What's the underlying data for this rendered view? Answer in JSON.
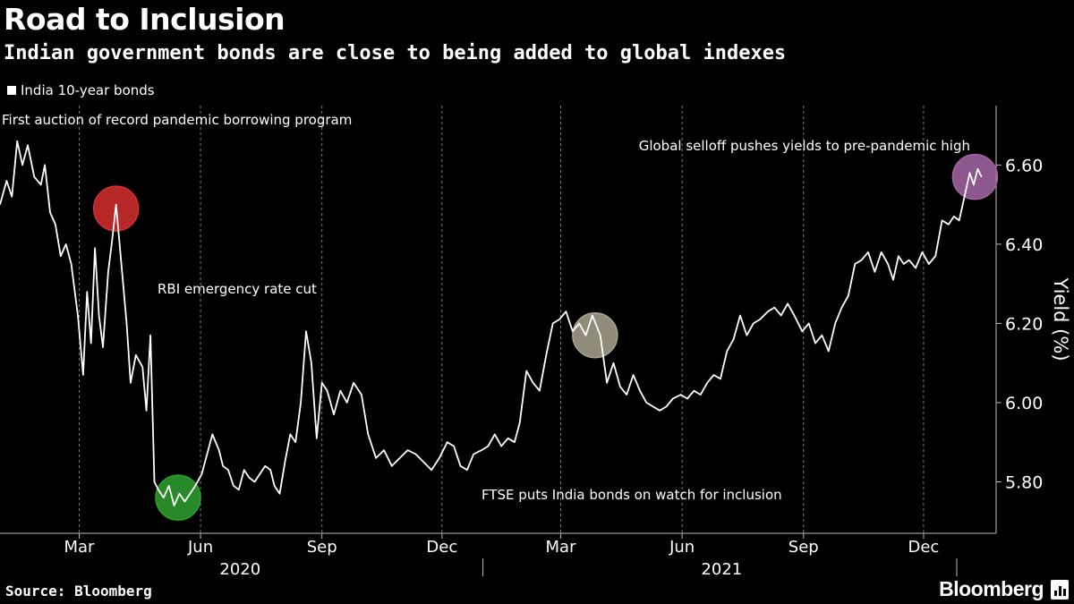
{
  "chart_data": {
    "type": "line",
    "title": "Road to Inclusion",
    "subtitle": "Indian government bonds are close to being added to global indexes",
    "ylabel": "Yield (%)",
    "ylim": [
      5.67,
      6.75
    ],
    "y_ticks": [
      5.8,
      6.0,
      6.2,
      6.4,
      6.6
    ],
    "y_tick_labels": [
      "5.80",
      "6.00",
      "6.20",
      "6.40",
      "6.60"
    ],
    "x_range": [
      "2020-01-01",
      "2022-01-25"
    ],
    "x_ticks": [
      {
        "date": "2020-03-01",
        "label": "Mar"
      },
      {
        "date": "2020-06-01",
        "label": "Jun"
      },
      {
        "date": "2020-09-01",
        "label": "Sep"
      },
      {
        "date": "2020-12-01",
        "label": "Dec"
      },
      {
        "date": "2021-03-01",
        "label": "Mar"
      },
      {
        "date": "2021-06-01",
        "label": "Jun"
      },
      {
        "date": "2021-09-01",
        "label": "Sep"
      },
      {
        "date": "2021-12-01",
        "label": "Dec"
      }
    ],
    "year_labels": [
      {
        "date": "2020-07-01",
        "label": "2020"
      },
      {
        "date": "2021-07-01",
        "label": "2021"
      }
    ],
    "year_divider": "2021-01-01",
    "grid": true,
    "legend": "top-left",
    "series": [
      {
        "name": "India 10-year bonds",
        "color": "#ffffff",
        "points": [
          [
            "2020-01-01",
            6.5
          ],
          [
            "2020-01-06",
            6.56
          ],
          [
            "2020-01-10",
            6.52
          ],
          [
            "2020-01-14",
            6.66
          ],
          [
            "2020-01-18",
            6.6
          ],
          [
            "2020-01-22",
            6.65
          ],
          [
            "2020-01-27",
            6.57
          ],
          [
            "2020-02-01",
            6.55
          ],
          [
            "2020-02-04",
            6.6
          ],
          [
            "2020-02-08",
            6.48
          ],
          [
            "2020-02-12",
            6.45
          ],
          [
            "2020-02-16",
            6.37
          ],
          [
            "2020-02-20",
            6.4
          ],
          [
            "2020-02-24",
            6.35
          ],
          [
            "2020-02-29",
            6.22
          ],
          [
            "2020-03-04",
            6.07
          ],
          [
            "2020-03-07",
            6.28
          ],
          [
            "2020-03-10",
            6.15
          ],
          [
            "2020-03-13",
            6.39
          ],
          [
            "2020-03-16",
            6.22
          ],
          [
            "2020-03-19",
            6.14
          ],
          [
            "2020-03-23",
            6.33
          ],
          [
            "2020-03-26",
            6.41
          ],
          [
            "2020-03-29",
            6.5
          ],
          [
            "2020-04-02",
            6.35
          ],
          [
            "2020-04-06",
            6.2
          ],
          [
            "2020-04-09",
            6.05
          ],
          [
            "2020-04-13",
            6.12
          ],
          [
            "2020-04-18",
            6.09
          ],
          [
            "2020-04-21",
            5.98
          ],
          [
            "2020-04-24",
            6.17
          ],
          [
            "2020-04-27",
            5.8
          ],
          [
            "2020-04-30",
            5.78
          ],
          [
            "2020-05-04",
            5.76
          ],
          [
            "2020-05-08",
            5.79
          ],
          [
            "2020-05-12",
            5.74
          ],
          [
            "2020-05-16",
            5.77
          ],
          [
            "2020-05-20",
            5.75
          ],
          [
            "2020-05-24",
            5.77
          ],
          [
            "2020-05-28",
            5.79
          ],
          [
            "2020-06-02",
            5.82
          ],
          [
            "2020-06-06",
            5.87
          ],
          [
            "2020-06-10",
            5.92
          ],
          [
            "2020-06-15",
            5.88
          ],
          [
            "2020-06-18",
            5.84
          ],
          [
            "2020-06-22",
            5.83
          ],
          [
            "2020-06-26",
            5.79
          ],
          [
            "2020-06-30",
            5.78
          ],
          [
            "2020-07-04",
            5.83
          ],
          [
            "2020-07-08",
            5.81
          ],
          [
            "2020-07-12",
            5.8
          ],
          [
            "2020-07-16",
            5.82
          ],
          [
            "2020-07-20",
            5.84
          ],
          [
            "2020-07-24",
            5.83
          ],
          [
            "2020-07-27",
            5.79
          ],
          [
            "2020-07-31",
            5.77
          ],
          [
            "2020-08-04",
            5.85
          ],
          [
            "2020-08-08",
            5.92
          ],
          [
            "2020-08-12",
            5.9
          ],
          [
            "2020-08-16",
            6.0
          ],
          [
            "2020-08-20",
            6.18
          ],
          [
            "2020-08-24",
            6.1
          ],
          [
            "2020-08-28",
            5.91
          ],
          [
            "2020-09-01",
            6.05
          ],
          [
            "2020-09-05",
            6.03
          ],
          [
            "2020-09-10",
            5.97
          ],
          [
            "2020-09-15",
            6.03
          ],
          [
            "2020-09-20",
            6.0
          ],
          [
            "2020-09-25",
            6.05
          ],
          [
            "2020-10-01",
            6.02
          ],
          [
            "2020-10-06",
            5.92
          ],
          [
            "2020-10-12",
            5.86
          ],
          [
            "2020-10-18",
            5.88
          ],
          [
            "2020-10-24",
            5.84
          ],
          [
            "2020-10-30",
            5.86
          ],
          [
            "2020-11-05",
            5.88
          ],
          [
            "2020-11-11",
            5.87
          ],
          [
            "2020-11-17",
            5.85
          ],
          [
            "2020-11-23",
            5.83
          ],
          [
            "2020-11-29",
            5.86
          ],
          [
            "2020-12-05",
            5.9
          ],
          [
            "2020-12-10",
            5.89
          ],
          [
            "2020-12-15",
            5.84
          ],
          [
            "2020-12-20",
            5.83
          ],
          [
            "2020-12-25",
            5.87
          ],
          [
            "2020-12-31",
            5.88
          ],
          [
            "2021-01-05",
            5.89
          ],
          [
            "2021-01-10",
            5.92
          ],
          [
            "2021-01-15",
            5.89
          ],
          [
            "2021-01-20",
            5.91
          ],
          [
            "2021-01-25",
            5.9
          ],
          [
            "2021-01-29",
            5.95
          ],
          [
            "2021-02-03",
            6.08
          ],
          [
            "2021-02-08",
            6.05
          ],
          [
            "2021-02-13",
            6.03
          ],
          [
            "2021-02-18",
            6.12
          ],
          [
            "2021-02-23",
            6.2
          ],
          [
            "2021-02-28",
            6.21
          ],
          [
            "2021-03-05",
            6.23
          ],
          [
            "2021-03-10",
            6.18
          ],
          [
            "2021-03-15",
            6.2
          ],
          [
            "2021-03-20",
            6.17
          ],
          [
            "2021-03-25",
            6.22
          ],
          [
            "2021-03-31",
            6.17
          ],
          [
            "2021-04-05",
            6.05
          ],
          [
            "2021-04-10",
            6.1
          ],
          [
            "2021-04-15",
            6.04
          ],
          [
            "2021-04-20",
            6.02
          ],
          [
            "2021-04-25",
            6.07
          ],
          [
            "2021-04-30",
            6.03
          ],
          [
            "2021-05-05",
            6.0
          ],
          [
            "2021-05-10",
            5.99
          ],
          [
            "2021-05-15",
            5.98
          ],
          [
            "2021-05-20",
            5.99
          ],
          [
            "2021-05-25",
            6.01
          ],
          [
            "2021-05-31",
            6.02
          ],
          [
            "2021-06-05",
            6.01
          ],
          [
            "2021-06-10",
            6.03
          ],
          [
            "2021-06-15",
            6.02
          ],
          [
            "2021-06-20",
            6.05
          ],
          [
            "2021-06-25",
            6.07
          ],
          [
            "2021-06-30",
            6.06
          ],
          [
            "2021-07-05",
            6.13
          ],
          [
            "2021-07-10",
            6.16
          ],
          [
            "2021-07-15",
            6.22
          ],
          [
            "2021-07-20",
            6.17
          ],
          [
            "2021-07-25",
            6.2
          ],
          [
            "2021-07-30",
            6.21
          ],
          [
            "2021-08-05",
            6.23
          ],
          [
            "2021-08-10",
            6.24
          ],
          [
            "2021-08-15",
            6.22
          ],
          [
            "2021-08-20",
            6.25
          ],
          [
            "2021-08-25",
            6.22
          ],
          [
            "2021-08-31",
            6.18
          ],
          [
            "2021-09-05",
            6.2
          ],
          [
            "2021-09-10",
            6.15
          ],
          [
            "2021-09-15",
            6.17
          ],
          [
            "2021-09-20",
            6.13
          ],
          [
            "2021-09-25",
            6.2
          ],
          [
            "2021-09-30",
            6.24
          ],
          [
            "2021-10-05",
            6.27
          ],
          [
            "2021-10-10",
            6.35
          ],
          [
            "2021-10-15",
            6.36
          ],
          [
            "2021-10-20",
            6.38
          ],
          [
            "2021-10-25",
            6.33
          ],
          [
            "2021-10-30",
            6.38
          ],
          [
            "2021-11-04",
            6.35
          ],
          [
            "2021-11-08",
            6.31
          ],
          [
            "2021-11-12",
            6.37
          ],
          [
            "2021-11-16",
            6.35
          ],
          [
            "2021-11-20",
            6.36
          ],
          [
            "2021-11-25",
            6.34
          ],
          [
            "2021-11-30",
            6.38
          ],
          [
            "2021-12-05",
            6.35
          ],
          [
            "2021-12-10",
            6.37
          ],
          [
            "2021-12-15",
            6.46
          ],
          [
            "2021-12-20",
            6.45
          ],
          [
            "2021-12-24",
            6.47
          ],
          [
            "2021-12-28",
            6.46
          ],
          [
            "2022-01-01",
            6.52
          ],
          [
            "2022-01-05",
            6.58
          ],
          [
            "2022-01-08",
            6.55
          ],
          [
            "2022-01-11",
            6.59
          ],
          [
            "2022-01-14",
            6.57
          ]
        ]
      }
    ],
    "annotations": [
      {
        "text": "First auction of record pandemic borrowing program",
        "date": "2020-01-15",
        "value": 6.66
      },
      {
        "text": "RBI emergency rate cut",
        "date": "2020-03-29",
        "value": 6.49,
        "marker_color": "#d62f2f"
      },
      {
        "text": "FTSE puts India bonds on watch for inclusion",
        "date": "2020-05-15",
        "value": 5.76,
        "marker_color": "#2ea12e"
      },
      {
        "text": "",
        "date": "2021-03-27",
        "value": 6.17,
        "marker_color": "#a9a58e"
      },
      {
        "text": "Global selloff pushes yields to pre-pandemic high",
        "date": "2022-01-09",
        "value": 6.57,
        "marker_color": "#a466a4"
      }
    ]
  },
  "footer": {
    "source": "Source: Bloomberg",
    "brand": "Bloomberg"
  }
}
